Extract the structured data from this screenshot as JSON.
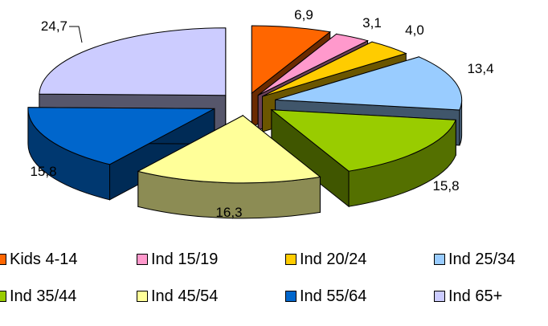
{
  "chart_data": {
    "type": "pie",
    "style": "3d-exploded",
    "slices": [
      {
        "label": "Kids 4-14",
        "value": 6.9,
        "value_label": "6,9",
        "color": "#FF6600"
      },
      {
        "label": "Ind 15/19",
        "value": 3.1,
        "value_label": "3,1",
        "color": "#FF99CC"
      },
      {
        "label": "Ind 20/24",
        "value": 4.0,
        "value_label": "4,0",
        "color": "#FFCC00"
      },
      {
        "label": "Ind 25/34",
        "value": 13.4,
        "value_label": "13,4",
        "color": "#99CCFF"
      },
      {
        "label": "Ind 35/44",
        "value": 15.8,
        "value_label": "15,8",
        "color": "#99CC00"
      },
      {
        "label": "Ind 45/54",
        "value": 16.3,
        "value_label": "16,3",
        "color": "#FFFF99"
      },
      {
        "label": "Ind 55/64",
        "value": 15.8,
        "value_label": "15,8",
        "color": "#0066CC"
      },
      {
        "label": "Ind 65+",
        "value": 24.7,
        "value_label": "24,7",
        "color": "#CCCCFF"
      }
    ],
    "legend_position": "bottom",
    "title": ""
  }
}
